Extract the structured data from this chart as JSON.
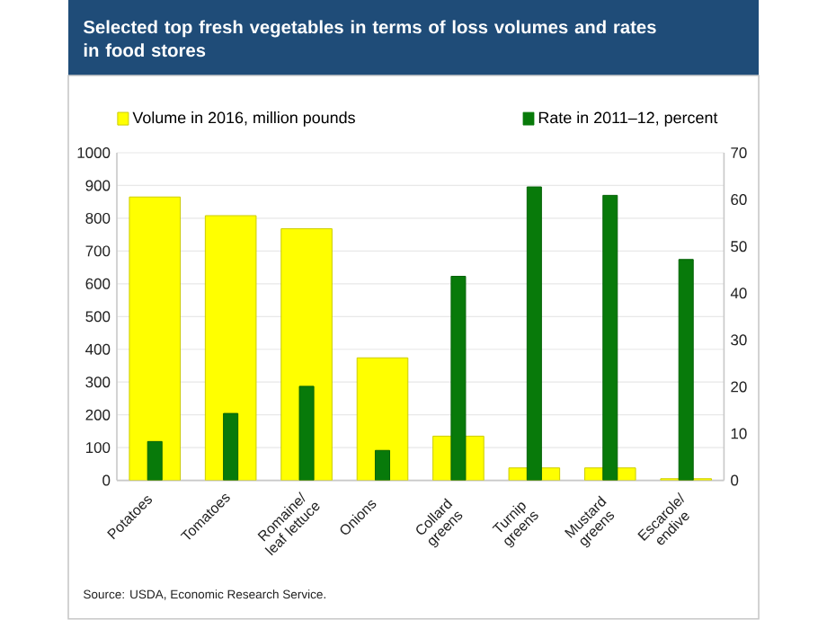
{
  "chart_data": {
    "type": "bar",
    "title": "Selected top fresh vegetables in terms of loss volumes and rates in food stores",
    "categories": [
      "Potatoes",
      "Tomatoes",
      "Romaine/ leaf lettuce",
      "Onions",
      "Collard greens",
      "Turnip greens",
      "Mustard greens",
      "Escarole/ endive"
    ],
    "series": [
      {
        "name": "Volume in 2016, million pounds",
        "color": "#ffff00",
        "values": [
          865,
          808,
          768,
          374,
          135,
          38,
          38,
          5
        ]
      },
      {
        "name": "Rate in 2011–12, percent",
        "color": "#087a0a",
        "values": [
          8.3,
          14.3,
          20.1,
          6.4,
          43.6,
          62.7,
          60.9,
          47.2
        ],
        "axis": "y2"
      }
    ],
    "ylim": [
      0,
      1000
    ],
    "yticks": [
      0,
      100,
      200,
      300,
      400,
      500,
      600,
      700,
      800,
      900,
      1000
    ],
    "y2lim": [
      0,
      70
    ],
    "y2ticks": [
      0,
      10,
      20,
      30,
      40,
      50,
      60,
      70
    ],
    "grid": "y",
    "legend": "top",
    "annotations": [
      "Source: USDA, Economic Research Service."
    ]
  }
}
